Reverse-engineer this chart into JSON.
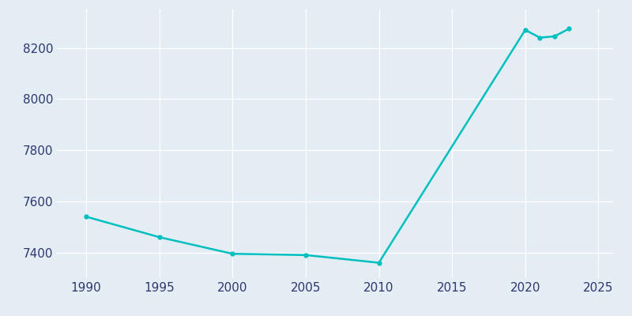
{
  "years": [
    1990,
    1995,
    2000,
    2005,
    2010,
    2020,
    2021,
    2022,
    2023
  ],
  "population": [
    7540,
    7460,
    7395,
    7390,
    7360,
    8270,
    8240,
    8245,
    8275
  ],
  "line_color": "#00BFBF",
  "marker": "o",
  "marker_size": 3.5,
  "line_width": 1.8,
  "background_color": "#E4ECF4",
  "grid_color": "#FFFFFF",
  "text_color": "#2D3870",
  "xlim": [
    1988,
    2026
  ],
  "ylim": [
    7300,
    8350
  ],
  "xticks": [
    1990,
    1995,
    2000,
    2005,
    2010,
    2015,
    2020,
    2025
  ],
  "yticks": [
    7400,
    7600,
    7800,
    8000,
    8200
  ]
}
